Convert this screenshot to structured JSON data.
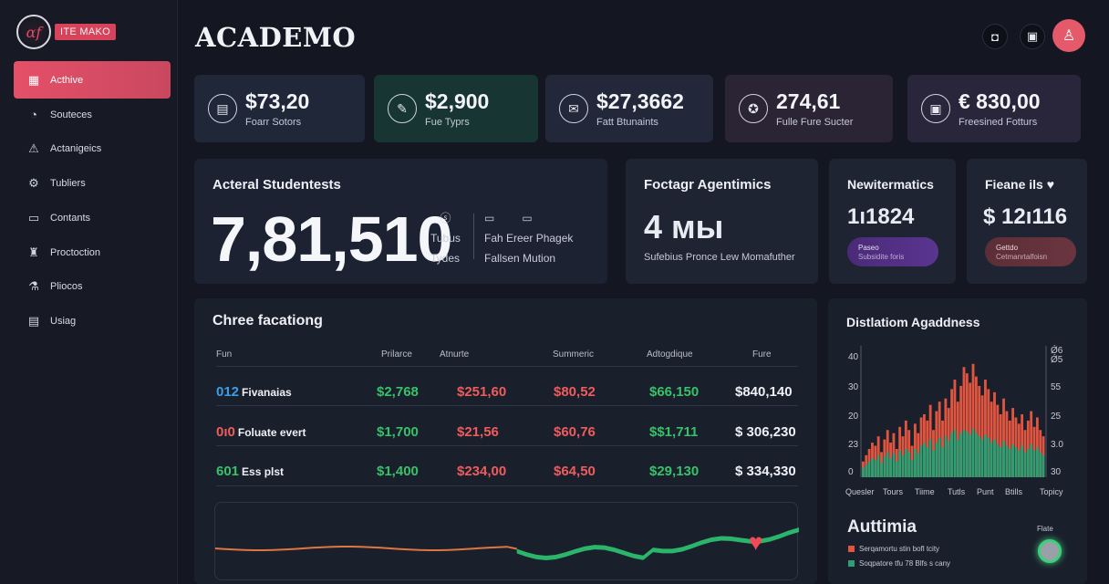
{
  "sidebar": {
    "brand_badge": "ITE MAKO",
    "items": [
      {
        "label": "Acthive",
        "icon": "grid-icon",
        "glyph": "▦",
        "active": true
      },
      {
        "label": "Souteces",
        "icon": "clock-icon",
        "glyph": "◔",
        "active": false
      },
      {
        "label": "Actanigeics",
        "icon": "warning-icon",
        "glyph": "⚠",
        "active": false
      },
      {
        "label": "Tubliers",
        "icon": "gear-icon",
        "glyph": "⚙",
        "active": false
      },
      {
        "label": "Contants",
        "icon": "folder-icon",
        "glyph": "▭",
        "active": false
      },
      {
        "label": "Proctoction",
        "icon": "trophy-icon",
        "glyph": "♜",
        "active": false
      },
      {
        "label": "Pliocos",
        "icon": "flask-icon",
        "glyph": "⚗",
        "active": false
      },
      {
        "label": "Usiag",
        "icon": "document-icon",
        "glyph": "▤",
        "active": false
      }
    ]
  },
  "header": {
    "title": "ACADEMO"
  },
  "stats": [
    {
      "value": "$73,20",
      "label": "Foarr Sotors",
      "icon": "calendar-icon",
      "glyph": "▤",
      "bg": "#1f2738"
    },
    {
      "value": "$2,900",
      "label": "Fue Typrs",
      "icon": "pen-icon",
      "glyph": "✎",
      "bg": "#173532"
    },
    {
      "value": "$27,3662",
      "label": "Fatt Btunaints",
      "icon": "envelope-icon",
      "glyph": "✉",
      "bg": "#22283a"
    },
    {
      "value": "274,61",
      "label": "Fulle Fure Sucter",
      "icon": "badge-icon",
      "glyph": "✪",
      "bg": "#2a2434"
    },
    {
      "value": "€ 830,00",
      "label": "Freesined Fotturs",
      "icon": "briefcase-icon",
      "glyph": "▣",
      "bg": "#29253a"
    }
  ],
  "students": {
    "title": "Acteral Studentests",
    "value": "7,81,510",
    "col1": [
      "Tubus",
      "Tydes"
    ],
    "col2": [
      "Fah Ereer Phagek",
      "Fallsen Mution"
    ]
  },
  "agentimics": {
    "title": "Foctagr Agentimics",
    "value": "4 мы",
    "footer": "Sufebius Pronce Lew Momafuther"
  },
  "mattrics": {
    "title": "Newitermatics",
    "value": "1ı1824",
    "pill_title": "Paseo",
    "pill_sub": "Subsidite foris"
  },
  "fieane": {
    "title": "Fieane ils ♥",
    "value": "$ 12ı116",
    "pill_title": "Gettdo",
    "pill_sub": "Cetmanrtalfoisn"
  },
  "table": {
    "title": "Chree facationg",
    "headers": [
      "Fun",
      "Prilarce",
      "Atnurte",
      "Summeric",
      "Adtogdique",
      "Fure"
    ],
    "rows": [
      {
        "code": "012",
        "code_color": "#3aa0e6",
        "name": "Fivanaias",
        "cells": [
          "$2,768",
          "$251,60",
          "$80,52",
          "$66,150",
          "$840,140"
        ],
        "colors": [
          "green",
          "red",
          "red",
          "green",
          "white"
        ]
      },
      {
        "code": "0ı0",
        "code_color": "#ee5c5c",
        "name": "Foluate evert",
        "cells": [
          "$1,700",
          "$21,56",
          "$60,76",
          "$$1,711",
          "$ 306,230"
        ],
        "colors": [
          "green",
          "red",
          "red",
          "green",
          "white"
        ]
      },
      {
        "code": "601",
        "code_color": "#37c26a",
        "name": "Ess plst",
        "cells": [
          "$1,400",
          "$234,00",
          "$64,50",
          "$29,130",
          "$ 334,330"
        ],
        "colors": [
          "green",
          "red",
          "red",
          "green",
          "white"
        ]
      }
    ]
  },
  "distribution": {
    "title": "Distlatiom Agaddness",
    "y_left": [
      "40",
      "30",
      "20",
      "23",
      "0"
    ],
    "y_right": [
      "Ǿ6",
      "Ǿ5",
      "55",
      "25",
      "3.0",
      "30"
    ],
    "x_labels": [
      "Quesler",
      "Tours",
      "Tiime",
      "Tutls",
      "Punt",
      "Btills",
      "Topicy"
    ],
    "series_a_color": "#e0553f",
    "series_b_color": "#2f9e72",
    "series_a": [
      10,
      14,
      18,
      22,
      20,
      26,
      16,
      24,
      30,
      22,
      28,
      18,
      32,
      26,
      36,
      30,
      20,
      34,
      28,
      38,
      40,
      36,
      46,
      30,
      42,
      48,
      36,
      50,
      44,
      56,
      62,
      48,
      58,
      70,
      66,
      60,
      72,
      64,
      58,
      52,
      62,
      56,
      48,
      54,
      46,
      40,
      50,
      42,
      36,
      44,
      38,
      34,
      40,
      30,
      36,
      42,
      32,
      38,
      30,
      26
    ],
    "series_b": [
      6,
      8,
      10,
      12,
      11,
      14,
      9,
      13,
      16,
      12,
      15,
      10,
      17,
      14,
      18,
      16,
      11,
      18,
      15,
      20,
      22,
      19,
      24,
      17,
      22,
      25,
      19,
      26,
      23,
      28,
      30,
      24,
      28,
      30,
      29,
      27,
      31,
      28,
      26,
      24,
      27,
      25,
      22,
      24,
      21,
      19,
      23,
      20,
      18,
      21,
      19,
      17,
      20,
      16,
      18,
      21,
      17,
      19,
      16,
      14
    ]
  },
  "autumia": {
    "title": "Auttimia",
    "legend": [
      {
        "label": "Serqamortu stin bofl tcity",
        "color": "#e0553f"
      },
      {
        "label": "Soqpatore tfu 78 Blfs s cany",
        "color": "#2f9e72"
      }
    ],
    "status_label": "Flate"
  }
}
